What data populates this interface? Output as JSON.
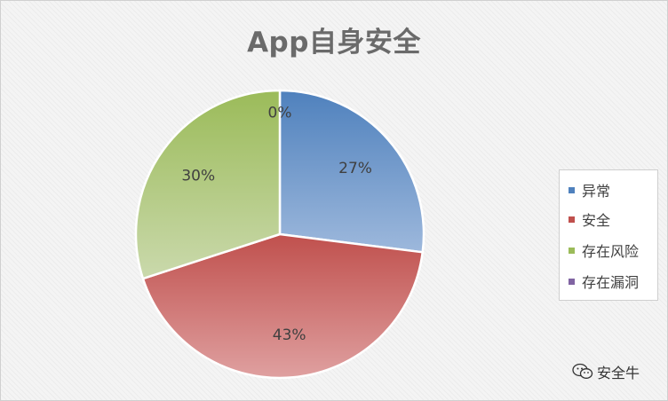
{
  "chart_data": {
    "type": "pie",
    "title": "App自身安全",
    "slices": [
      {
        "label": "异常",
        "value": 27,
        "display": "27%",
        "color": "#4f81bd"
      },
      {
        "label": "安全",
        "value": 43,
        "display": "43%",
        "color": "#c0504d"
      },
      {
        "label": "存在风险",
        "value": 30,
        "display": "30%",
        "color": "#9bbb59"
      },
      {
        "label": "存在漏洞",
        "value": 0,
        "display": "0%",
        "color": "#8064a2"
      }
    ],
    "legend_position": "right"
  },
  "watermark": {
    "text": "安全牛",
    "icon": "wechat-icon"
  }
}
